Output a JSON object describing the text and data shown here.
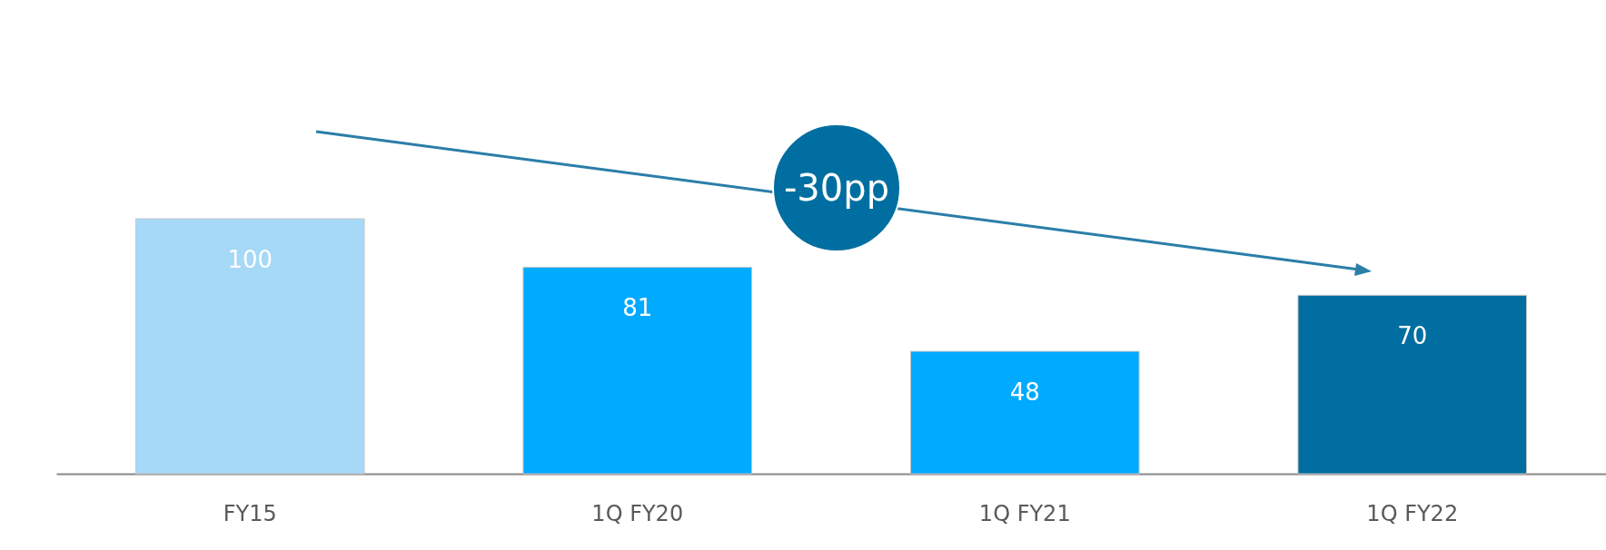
{
  "chart_data": {
    "type": "bar",
    "categories": [
      "FY15",
      "1Q FY20",
      "1Q FY21",
      "1Q FY22"
    ],
    "values": [
      100,
      81,
      48,
      70
    ],
    "colors": [
      "#a6d8f7",
      "#00aaff",
      "#00aaff",
      "#006ea0"
    ],
    "data_labels": true,
    "annotations": [
      "-30pp"
    ]
  }
}
